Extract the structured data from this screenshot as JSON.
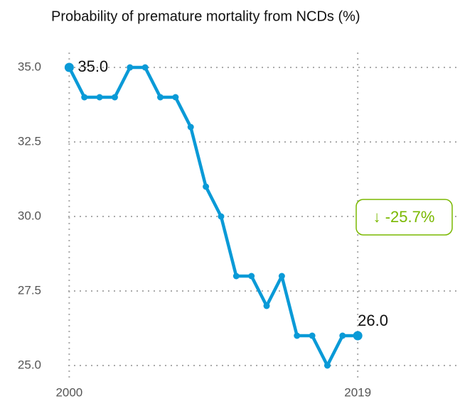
{
  "chart_data": {
    "type": "line",
    "title": "Probability of premature mortality from NCDs (%)",
    "x": [
      2000,
      2001,
      2002,
      2003,
      2004,
      2005,
      2006,
      2007,
      2008,
      2009,
      2010,
      2011,
      2012,
      2013,
      2014,
      2015,
      2016,
      2017,
      2018,
      2019
    ],
    "series": [
      {
        "name": "Probability of premature mortality from NCDs",
        "color": "#0a9ad7",
        "values": [
          35,
          34,
          34,
          34,
          35,
          35,
          34,
          34,
          33,
          31,
          30,
          28,
          28,
          27,
          28,
          26,
          26,
          25,
          26,
          26
        ],
        "value_labels": [
          "35.0",
          null,
          null,
          null,
          null,
          null,
          null,
          null,
          null,
          null,
          null,
          null,
          null,
          null,
          null,
          null,
          null,
          null,
          null,
          "26.0"
        ]
      }
    ],
    "xlim": [
      1999,
      2025.5
    ],
    "xticks": [
      2000,
      2019
    ],
    "ylim": [
      24.5,
      35.5
    ],
    "yticks": [
      {
        "value": 25,
        "label": "25.0"
      },
      {
        "value": 27.5,
        "label": "27.5"
      },
      {
        "value": 30,
        "label": "30.0"
      },
      {
        "value": 32.5,
        "label": "32.5"
      },
      {
        "value": 35,
        "label": "35.0"
      }
    ],
    "grid": true,
    "annotations": [
      {
        "text": "↓ -25.7%",
        "color": "#7ab800"
      }
    ]
  }
}
